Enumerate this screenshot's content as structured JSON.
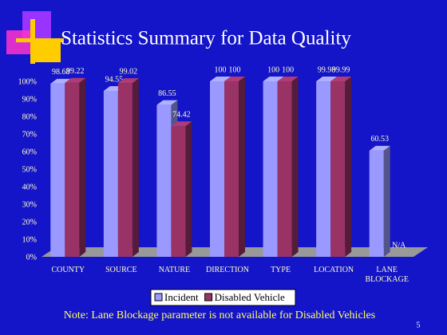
{
  "chart_data": {
    "type": "bar3d",
    "title": "Statistics Summary for Data Quality",
    "categories": [
      "COUNTY",
      "SOURCE",
      "NATURE",
      "DIRECTION",
      "TYPE",
      "LOCATION",
      "LANE BLOCKAGE"
    ],
    "series": [
      {
        "name": "Incident",
        "color": "#9999ff",
        "values": [
          98.68,
          94.55,
          86.55,
          100,
          100,
          99.98,
          60.53
        ]
      },
      {
        "name": "Disabled Vehicle",
        "color": "#993366",
        "values": [
          99.22,
          99.02,
          74.42,
          100,
          100,
          99.99,
          null
        ],
        "value_labels": [
          "99.22",
          "99.02",
          "74.42",
          "100",
          "100",
          "99.99",
          "N/A"
        ]
      }
    ],
    "ylim": [
      0,
      100
    ],
    "yticks": [
      {
        "value": 0,
        "label": "0%"
      },
      {
        "value": 10,
        "label": "10%"
      },
      {
        "value": 20,
        "label": "20%"
      },
      {
        "value": 30,
        "label": "30%"
      },
      {
        "value": 40,
        "label": "40%"
      },
      {
        "value": 50,
        "label": "50%"
      },
      {
        "value": 60,
        "label": "60%"
      },
      {
        "value": 70,
        "label": "70%"
      },
      {
        "value": 80,
        "label": "80%"
      },
      {
        "value": 90,
        "label": "90%"
      },
      {
        "value": 100,
        "label": "100%"
      }
    ],
    "grid": false,
    "legend": "bottom",
    "note": "Note: Lane Blockage parameter is not available for Disabled Vehicles",
    "page_number": "5"
  }
}
